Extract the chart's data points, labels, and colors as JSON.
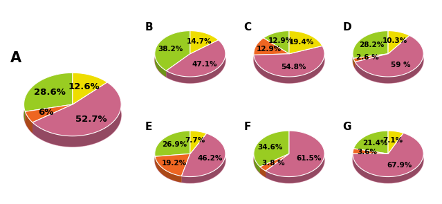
{
  "charts": [
    {
      "label": "A",
      "values": [
        28.6,
        6.0,
        52.7,
        12.6
      ],
      "colors": [
        "#99cc22",
        "#ee6622",
        "#cc6688",
        "#eedd00"
      ],
      "pct_labels": [
        "28.6%",
        "6%",
        "52.7%",
        "12.6%"
      ],
      "start_angle": 90
    },
    {
      "label": "B",
      "values": [
        38.2,
        0.0,
        47.1,
        14.7
      ],
      "colors": [
        "#99cc22",
        "#ee6622",
        "#cc6688",
        "#eedd00"
      ],
      "pct_labels": [
        "38.2%",
        "",
        "47.1%",
        "14.7%"
      ],
      "start_angle": 90
    },
    {
      "label": "C",
      "values": [
        12.9,
        12.9,
        54.8,
        19.4
      ],
      "colors": [
        "#99cc22",
        "#ee6622",
        "#cc6688",
        "#eedd00"
      ],
      "pct_labels": [
        "12.9%",
        "12.9%",
        "54.8%",
        "19.4%"
      ],
      "start_angle": 90
    },
    {
      "label": "D",
      "values": [
        28.2,
        2.6,
        59.0,
        10.3
      ],
      "colors": [
        "#99cc22",
        "#ee6622",
        "#cc6688",
        "#eedd00"
      ],
      "pct_labels": [
        "28.2%",
        "2.6 %",
        "59 %",
        "10.3%"
      ],
      "start_angle": 90
    },
    {
      "label": "E",
      "values": [
        26.9,
        19.2,
        46.2,
        7.7
      ],
      "colors": [
        "#99cc22",
        "#ee6622",
        "#cc6688",
        "#eedd00"
      ],
      "pct_labels": [
        "26.9%",
        "19.2%",
        "46.2%",
        "7.7%"
      ],
      "start_angle": 90
    },
    {
      "label": "F",
      "values": [
        34.6,
        3.8,
        61.5,
        0.0
      ],
      "colors": [
        "#99cc22",
        "#ee6622",
        "#cc6688",
        "#eedd00"
      ],
      "pct_labels": [
        "34.6%",
        "3.8 %",
        "61.5%",
        ""
      ],
      "start_angle": 90
    },
    {
      "label": "G",
      "values": [
        21.4,
        3.6,
        67.9,
        7.1
      ],
      "colors": [
        "#99cc22",
        "#ee6622",
        "#cc6688",
        "#eedd00"
      ],
      "pct_labels": [
        "21.4%",
        "3.6%",
        "67.9%",
        "7.1%"
      ],
      "start_angle": 90
    }
  ],
  "bg_color": "#ffffff",
  "pct_fontsize_A": 9.5,
  "pct_fontsize": 7.5,
  "label_fontsize_A": 15,
  "label_fontsize": 11,
  "depth": 0.18,
  "depth_A": 0.22
}
